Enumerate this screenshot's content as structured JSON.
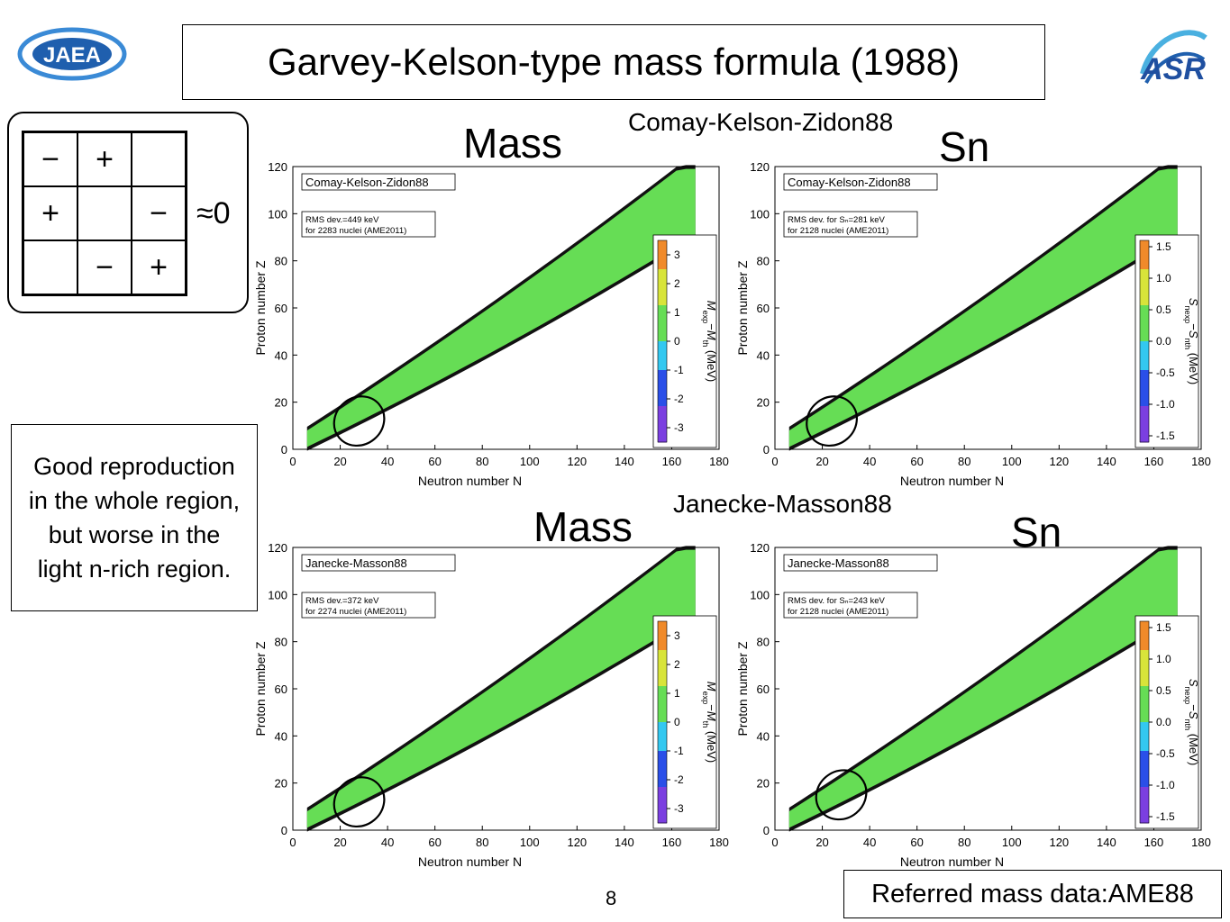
{
  "header": {
    "title": "Garvey-Kelson-type mass formula (1988)"
  },
  "logos": {
    "left": "JAEA",
    "right": "ASR"
  },
  "gk_relation": {
    "cells": [
      "−",
      "+",
      "",
      "+",
      "",
      "−",
      "",
      "−",
      "+"
    ],
    "approx": "≈0"
  },
  "note": {
    "lines": [
      "Good reproduction",
      "in the whole region,",
      "but worse in the",
      "light n-rich region."
    ]
  },
  "groups": {
    "top": "Comay-Kelson-Zidon88",
    "bottom": "Janecke-Masson88"
  },
  "panel_labels": {
    "mass": "Mass",
    "sn": "Sn"
  },
  "footer": {
    "reference": "Referred mass data:AME88",
    "page": "8"
  },
  "colors": {
    "nuclide_green": "#66dd55",
    "drip_black": "#111111",
    "plot_frame": "#000000"
  },
  "chart_data": [
    {
      "type": "heatmap",
      "legend_title": "Comay-Kelson-Zidon88",
      "info_lines": [
        "RMS dev.=449 keV",
        "for 2283 nuclei (AME2011)"
      ],
      "xlabel": "Neutron number N",
      "ylabel": "Proton number Z",
      "xlim": [
        0,
        180
      ],
      "ylim": [
        0,
        120
      ],
      "xticks": [
        0,
        20,
        40,
        60,
        80,
        100,
        120,
        140,
        160,
        180
      ],
      "yticks": [
        0,
        20,
        40,
        60,
        80,
        100,
        120
      ],
      "colorbar": {
        "label": "M_exp−M_th (MeV)",
        "range": [
          -3.5,
          3.5
        ],
        "ticks": [
          3,
          2,
          1,
          0,
          -1,
          -2,
          -3
        ],
        "tick_labels": [
          "3",
          "2",
          "1",
          "0",
          "-1",
          "-2",
          "-3"
        ]
      },
      "highlight_ellipse": {
        "center": [
          28,
          12
        ],
        "radii": [
          11,
          10
        ]
      }
    },
    {
      "type": "heatmap",
      "legend_title": "Comay-Kelson-Zidon88",
      "info_lines": [
        "RMS dev. for Sₙ=281 keV",
        "for 2128 nuclei (AME2011)"
      ],
      "xlabel": "Neutron number N",
      "ylabel": "Proton number Z",
      "xlim": [
        0,
        180
      ],
      "ylim": [
        0,
        120
      ],
      "xticks": [
        0,
        20,
        40,
        60,
        80,
        100,
        120,
        140,
        160,
        180
      ],
      "yticks": [
        0,
        20,
        40,
        60,
        80,
        100,
        120
      ],
      "colorbar": {
        "label": "S_nexp−S_nth (MeV)",
        "range": [
          -1.6,
          1.6
        ],
        "ticks": [
          1.5,
          1.0,
          0.5,
          0.0,
          -0.5,
          -1.0,
          -1.5
        ],
        "tick_labels": [
          "1.5",
          "1.0",
          "0.5",
          "0.0",
          "-0.5",
          "-1.0",
          "-1.5"
        ]
      },
      "highlight_ellipse": {
        "center": [
          24,
          12
        ],
        "radii": [
          11,
          10
        ]
      }
    },
    {
      "type": "heatmap",
      "legend_title": "Janecke-Masson88",
      "info_lines": [
        "RMS dev.=372 keV",
        "for 2274 nuclei (AME2011)"
      ],
      "xlabel": "Neutron number N",
      "ylabel": "Proton number Z",
      "xlim": [
        0,
        180
      ],
      "ylim": [
        0,
        120
      ],
      "xticks": [
        0,
        20,
        40,
        60,
        80,
        100,
        120,
        140,
        160,
        180
      ],
      "yticks": [
        0,
        20,
        40,
        60,
        80,
        100,
        120
      ],
      "colorbar": {
        "label": "M_exp−M_th (MeV)",
        "range": [
          -3.5,
          3.5
        ],
        "ticks": [
          3,
          2,
          1,
          0,
          -1,
          -2,
          -3
        ],
        "tick_labels": [
          "3",
          "2",
          "1",
          "0",
          "-1",
          "-2",
          "-3"
        ]
      },
      "highlight_ellipse": {
        "center": [
          28,
          12
        ],
        "radii": [
          11,
          10
        ]
      }
    },
    {
      "type": "heatmap",
      "legend_title": "Janecke-Masson88",
      "info_lines": [
        "RMS dev. for Sₙ=243 keV",
        "for 2128 nuclei (AME2011)"
      ],
      "xlabel": "Neutron number N",
      "ylabel": "Proton number Z",
      "xlim": [
        0,
        180
      ],
      "ylim": [
        0,
        120
      ],
      "xticks": [
        0,
        20,
        40,
        60,
        80,
        100,
        120,
        140,
        160,
        180
      ],
      "yticks": [
        0,
        20,
        40,
        60,
        80,
        100,
        120
      ],
      "colorbar": {
        "label": "S_nexp−S_nth (MeV)",
        "range": [
          -1.6,
          1.6
        ],
        "ticks": [
          1.5,
          1.0,
          0.5,
          0.0,
          -0.5,
          -1.0,
          -1.5
        ],
        "tick_labels": [
          "1.5",
          "1.0",
          "0.5",
          "0.0",
          "-0.5",
          "-1.0",
          "-1.5"
        ]
      },
      "highlight_ellipse": {
        "center": [
          28,
          15
        ],
        "radii": [
          11,
          10
        ]
      }
    }
  ]
}
